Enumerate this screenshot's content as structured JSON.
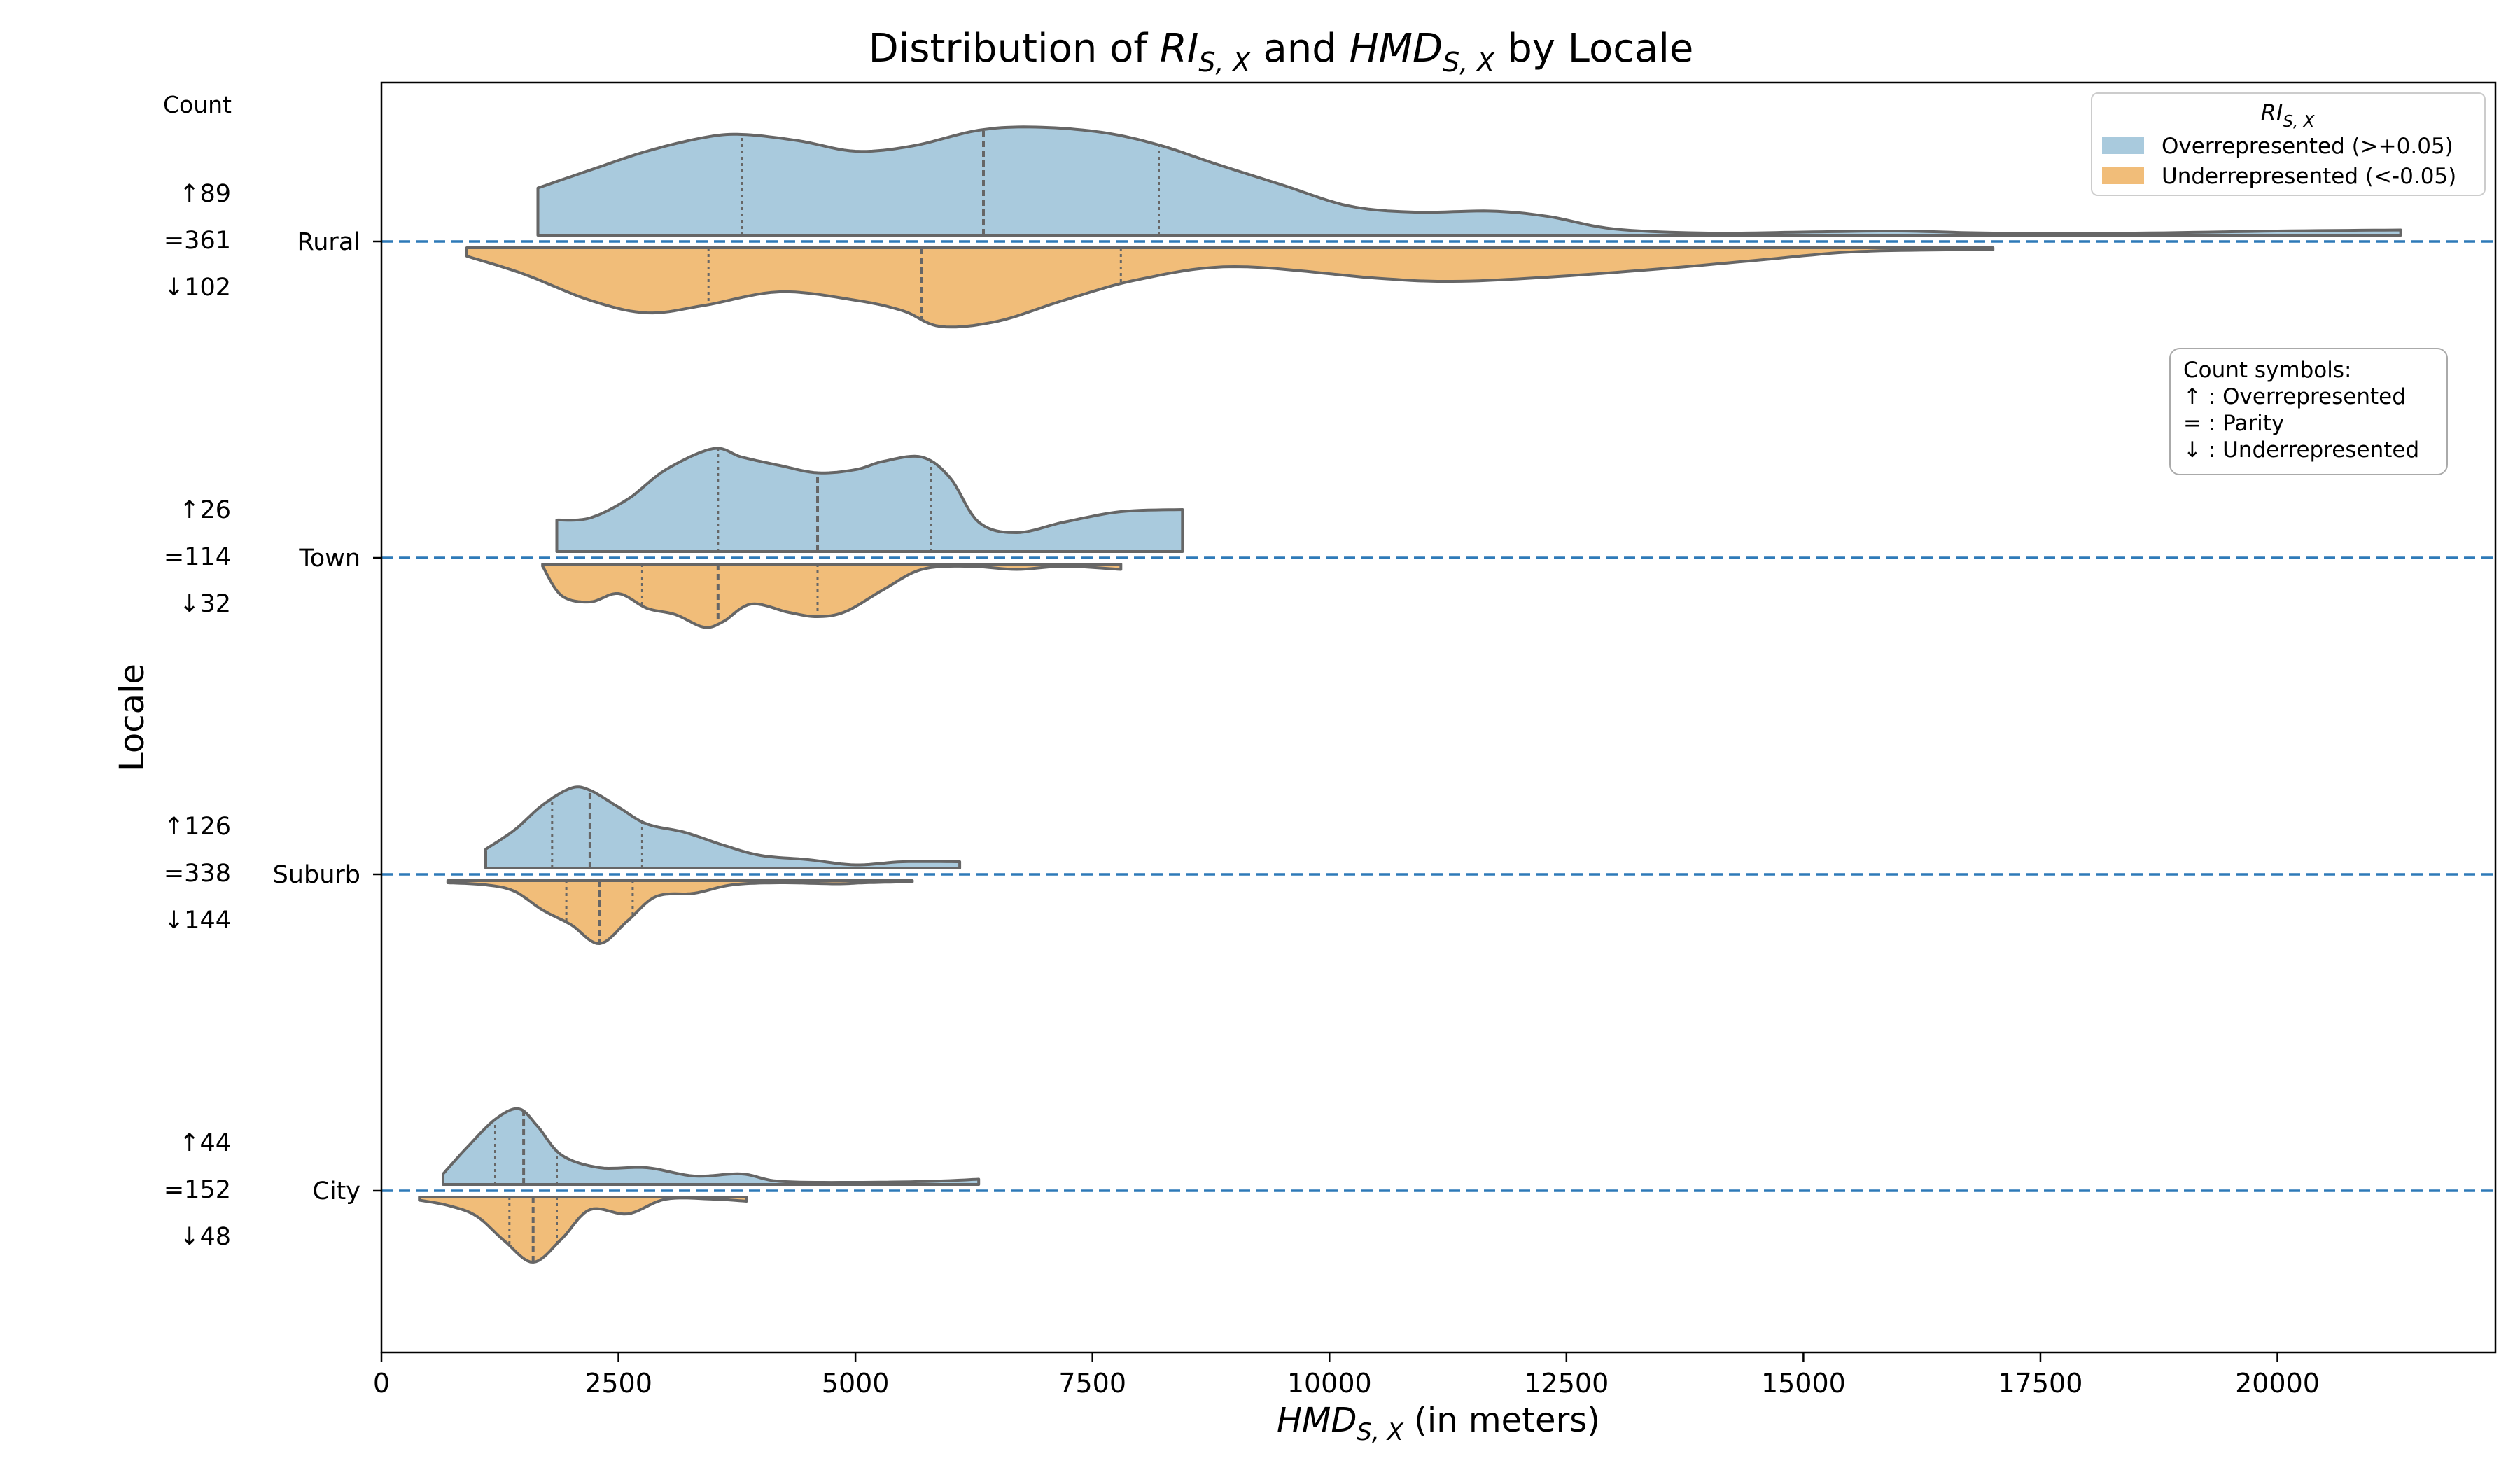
{
  "chart_data": {
    "type": "violin",
    "title": {
      "prefix": "Distribution of ",
      "var1": "RI",
      "var1_sub": "S, X",
      "middle": " and ",
      "var2": "HMD",
      "var2_sub": "S, X",
      "suffix": " by Locale"
    },
    "xlabel": {
      "var": "HMD",
      "sub": "S, X",
      "suffix": " (in meters)"
    },
    "ylabel": "Locale",
    "xlim": [
      0,
      22300
    ],
    "xticks": [
      0,
      2500,
      5000,
      7500,
      10000,
      12500,
      15000,
      17500,
      20000
    ],
    "xtick_labels": [
      "0",
      "2500",
      "5000",
      "7500",
      "10000",
      "12500",
      "15000",
      "17500",
      "20000"
    ],
    "count_header": "Count",
    "legend": {
      "title_var": "RI",
      "title_sub": "S, X",
      "items": [
        {
          "label": "Overrepresented (>+0.05)",
          "color": "#a9cadd"
        },
        {
          "label": "Underrepresented (<-0.05)",
          "color": "#f1bd79"
        }
      ]
    },
    "symbols_box": {
      "title": "Count symbols:",
      "lines": [
        "↑ : Overrepresented",
        "= : Parity",
        "↓ : Underrepresented"
      ]
    },
    "colors": {
      "over": "#a9cadd",
      "under": "#f1bd79",
      "edge": "#666666",
      "baseline": "#2e7ab8"
    },
    "categories": [
      {
        "name": "Rural",
        "counts": {
          "up": "↑89",
          "eq": "=361",
          "down": "↓102"
        },
        "over": {
          "range": [
            1650,
            21300
          ],
          "quartiles": [
            3800,
            6350,
            8200
          ],
          "profile": [
            [
              1650,
              0.45
            ],
            [
              2200,
              0.62
            ],
            [
              2800,
              0.8
            ],
            [
              3400,
              0.93
            ],
            [
              3800,
              0.96
            ],
            [
              4400,
              0.9
            ],
            [
              5000,
              0.8
            ],
            [
              5600,
              0.85
            ],
            [
              6300,
              1.0
            ],
            [
              6900,
              1.03
            ],
            [
              7600,
              0.98
            ],
            [
              8200,
              0.86
            ],
            [
              8800,
              0.68
            ],
            [
              9500,
              0.48
            ],
            [
              10200,
              0.28
            ],
            [
              10900,
              0.22
            ],
            [
              11700,
              0.23
            ],
            [
              12300,
              0.18
            ],
            [
              13000,
              0.06
            ],
            [
              14000,
              0.02
            ],
            [
              15000,
              0.03
            ],
            [
              16000,
              0.04
            ],
            [
              17000,
              0.02
            ],
            [
              18500,
              0.02
            ],
            [
              20000,
              0.04
            ],
            [
              21300,
              0.05
            ]
          ]
        },
        "under": {
          "range": [
            900,
            17000
          ],
          "quartiles": [
            3450,
            5700,
            7800
          ],
          "profile": [
            [
              900,
              0.08
            ],
            [
              1500,
              0.25
            ],
            [
              2200,
              0.5
            ],
            [
              2800,
              0.62
            ],
            [
              3400,
              0.55
            ],
            [
              4200,
              0.42
            ],
            [
              5000,
              0.5
            ],
            [
              5500,
              0.6
            ],
            [
              5900,
              0.75
            ],
            [
              6500,
              0.7
            ],
            [
              7200,
              0.5
            ],
            [
              8000,
              0.3
            ],
            [
              9000,
              0.18
            ],
            [
              10500,
              0.29
            ],
            [
              11300,
              0.32
            ],
            [
              12300,
              0.28
            ],
            [
              13500,
              0.2
            ],
            [
              14500,
              0.12
            ],
            [
              15500,
              0.04
            ],
            [
              16500,
              0.02
            ],
            [
              17000,
              0.02
            ]
          ]
        }
      },
      {
        "name": "Town",
        "counts": {
          "up": "↑26",
          "eq": "=114",
          "down": "↓32"
        },
        "over": {
          "range": [
            1850,
            8450
          ],
          "quartiles": [
            3550,
            4600,
            5800
          ],
          "profile": [
            [
              1850,
              0.3
            ],
            [
              2200,
              0.32
            ],
            [
              2600,
              0.5
            ],
            [
              3000,
              0.78
            ],
            [
              3500,
              0.98
            ],
            [
              3800,
              0.9
            ],
            [
              4200,
              0.82
            ],
            [
              4600,
              0.75
            ],
            [
              5000,
              0.78
            ],
            [
              5300,
              0.86
            ],
            [
              5700,
              0.9
            ],
            [
              6000,
              0.7
            ],
            [
              6300,
              0.28
            ],
            [
              6700,
              0.18
            ],
            [
              7200,
              0.28
            ],
            [
              7800,
              0.38
            ],
            [
              8450,
              0.4
            ]
          ]
        },
        "under": {
          "range": [
            1700,
            7800
          ],
          "quartiles": [
            2750,
            3550,
            4600
          ],
          "profile": [
            [
              1700,
              0.02
            ],
            [
              1900,
              0.3
            ],
            [
              2200,
              0.36
            ],
            [
              2500,
              0.28
            ],
            [
              2800,
              0.42
            ],
            [
              3100,
              0.48
            ],
            [
              3400,
              0.6
            ],
            [
              3600,
              0.55
            ],
            [
              3900,
              0.38
            ],
            [
              4300,
              0.46
            ],
            [
              4600,
              0.5
            ],
            [
              4900,
              0.45
            ],
            [
              5300,
              0.24
            ],
            [
              5700,
              0.05
            ],
            [
              6200,
              0.02
            ],
            [
              6700,
              0.05
            ],
            [
              7200,
              0.02
            ],
            [
              7800,
              0.05
            ]
          ]
        }
      },
      {
        "name": "Suburb",
        "counts": {
          "up": "↑126",
          "eq": "=338",
          "down": "↓144"
        },
        "over": {
          "range": [
            1100,
            6100
          ],
          "quartiles": [
            1800,
            2200,
            2750
          ],
          "profile": [
            [
              1100,
              0.18
            ],
            [
              1400,
              0.36
            ],
            [
              1700,
              0.6
            ],
            [
              2000,
              0.76
            ],
            [
              2200,
              0.74
            ],
            [
              2500,
              0.58
            ],
            [
              2800,
              0.42
            ],
            [
              3200,
              0.34
            ],
            [
              3600,
              0.22
            ],
            [
              4000,
              0.12
            ],
            [
              4500,
              0.08
            ],
            [
              5000,
              0.03
            ],
            [
              5500,
              0.06
            ],
            [
              6100,
              0.06
            ]
          ]
        },
        "under": {
          "range": [
            700,
            5600
          ],
          "quartiles": [
            1950,
            2300,
            2650
          ],
          "profile": [
            [
              700,
              0.02
            ],
            [
              1100,
              0.04
            ],
            [
              1400,
              0.1
            ],
            [
              1700,
              0.28
            ],
            [
              2000,
              0.42
            ],
            [
              2300,
              0.6
            ],
            [
              2600,
              0.38
            ],
            [
              2900,
              0.15
            ],
            [
              3300,
              0.12
            ],
            [
              3700,
              0.04
            ],
            [
              4200,
              0.02
            ],
            [
              4800,
              0.03
            ],
            [
              5100,
              0.02
            ],
            [
              5600,
              0.01
            ]
          ]
        }
      },
      {
        "name": "City",
        "counts": {
          "up": "↑44",
          "eq": "=152",
          "down": "↓48"
        },
        "over": {
          "range": [
            650,
            6300
          ],
          "quartiles": [
            1200,
            1500,
            1850
          ],
          "profile": [
            [
              650,
              0.1
            ],
            [
              900,
              0.35
            ],
            [
              1200,
              0.62
            ],
            [
              1450,
              0.72
            ],
            [
              1650,
              0.55
            ],
            [
              1900,
              0.28
            ],
            [
              2300,
              0.16
            ],
            [
              2800,
              0.16
            ],
            [
              3300,
              0.08
            ],
            [
              3800,
              0.1
            ],
            [
              4200,
              0.03
            ],
            [
              5000,
              0.02
            ],
            [
              5800,
              0.03
            ],
            [
              6300,
              0.05
            ]
          ]
        },
        "under": {
          "range": [
            400,
            3850
          ],
          "quartiles": [
            1350,
            1600,
            1850
          ],
          "profile": [
            [
              400,
              0.03
            ],
            [
              700,
              0.08
            ],
            [
              1000,
              0.18
            ],
            [
              1300,
              0.42
            ],
            [
              1600,
              0.62
            ],
            [
              1900,
              0.4
            ],
            [
              2200,
              0.12
            ],
            [
              2600,
              0.16
            ],
            [
              3000,
              0.02
            ],
            [
              3500,
              0.02
            ],
            [
              3850,
              0.04
            ]
          ]
        }
      }
    ]
  }
}
